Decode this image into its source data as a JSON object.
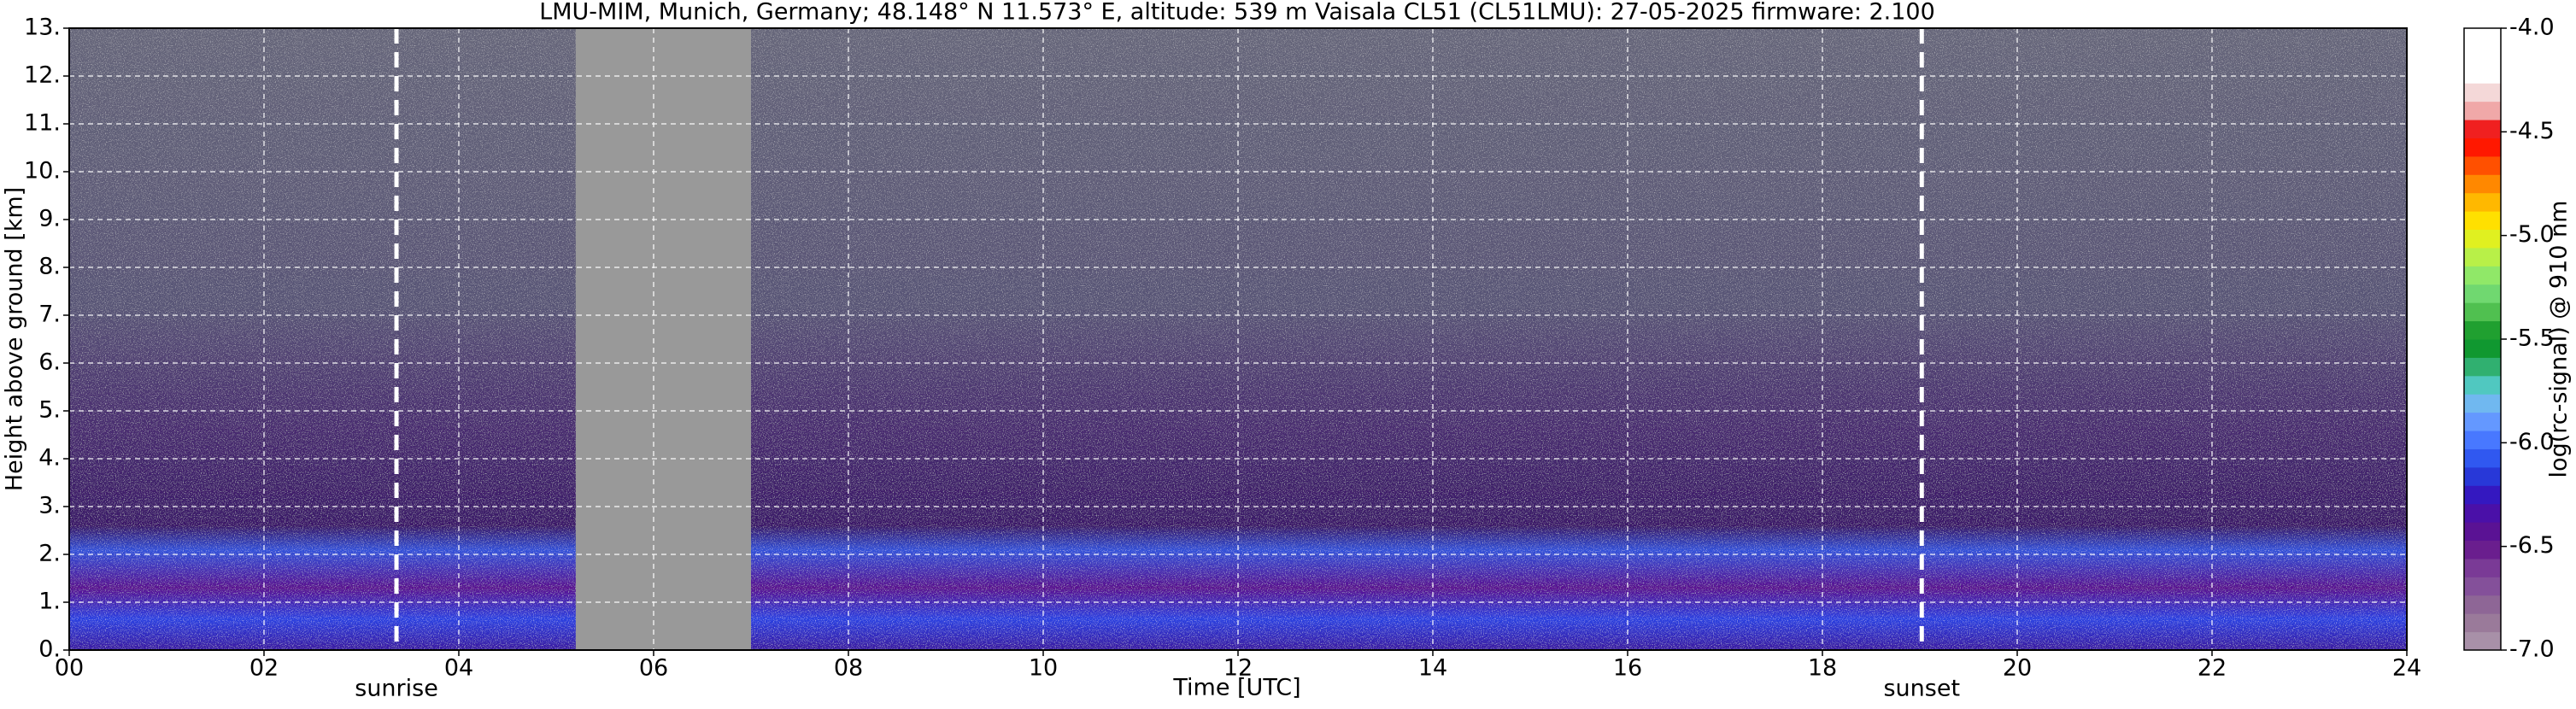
{
  "chart_data": {
    "type": "heatmap",
    "title": "LMU-MIM, Munich, Germany; 48.148° N 11.573° E, altitude: 539 m    Vaisala CL51 (CL51LMU): 27-05-2025    firmware: 2.100",
    "xlabel": "Time [UTC]",
    "ylabel": "Height above ground [km]",
    "xlim": [
      0,
      24
    ],
    "xticks": [
      {
        "value": 0,
        "label": "00"
      },
      {
        "value": 2,
        "label": "02"
      },
      {
        "value": 4,
        "label": "04"
      },
      {
        "value": 6,
        "label": "06"
      },
      {
        "value": 8,
        "label": "08"
      },
      10,
      12,
      14,
      16,
      18,
      20,
      22,
      24
    ],
    "ylim": [
      0,
      13
    ],
    "yticks": [
      {
        "value": 0,
        "label": "0."
      },
      {
        "value": 1,
        "label": "1."
      },
      {
        "value": 2,
        "label": "2."
      },
      {
        "value": 3,
        "label": "3."
      },
      {
        "value": 4,
        "label": "4."
      },
      {
        "value": 5,
        "label": "5."
      },
      {
        "value": 6,
        "label": "6."
      },
      {
        "value": 7,
        "label": "7."
      },
      {
        "value": 8,
        "label": "8."
      },
      {
        "value": 9,
        "label": "9."
      },
      {
        "value": 10,
        "label": "10."
      },
      {
        "value": 11,
        "label": "11."
      },
      {
        "value": 12,
        "label": "12."
      },
      {
        "value": 13,
        "label": "13."
      }
    ],
    "grid": true,
    "no_data": [
      5.2,
      7.0
    ],
    "no_data_color": "#999999",
    "annotations": [
      {
        "x": 3.36,
        "label": "sunrise"
      },
      {
        "x": 19.02,
        "label": "sunset"
      }
    ],
    "colorbar": {
      "label": "log(rc-signal) @ 910 nm",
      "lim": [
        -7.0,
        -4.0
      ],
      "ticks": [
        {
          "value": -4.0,
          "label": "-4.0"
        },
        -4.5,
        {
          "value": -5.0,
          "label": "-5.0"
        },
        -5.5,
        {
          "value": -6.0,
          "label": "-6.0"
        },
        -6.5,
        {
          "value": -7.0,
          "label": "-7.0"
        }
      ],
      "colors": [
        "#a890a8",
        "#9a7a9a",
        "#8e6696",
        "#84509a",
        "#7a3a96",
        "#6a1e8e",
        "#5a1294",
        "#4a10a8",
        "#3418c0",
        "#2838d8",
        "#3058f0",
        "#4878ff",
        "#6498ff",
        "#70b8f0",
        "#50c8c0",
        "#30b070",
        "#109830",
        "#20a030",
        "#50c050",
        "#70d870",
        "#90e868",
        "#b8f048",
        "#e0f020",
        "#ffe000",
        "#ffb800",
        "#ff8800",
        "#ff5000",
        "#ff1800",
        "#f02020",
        "#f0a8a8",
        "#f4d8d8",
        "#ffffff",
        "#ffffff",
        "#ffffff"
      ]
    }
  }
}
